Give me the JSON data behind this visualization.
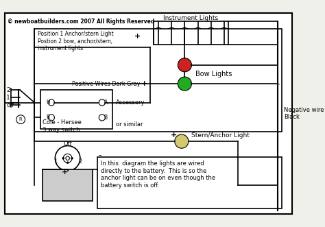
{
  "title": "© newboatbuilders.com 2007 All Rights Reserved",
  "bg_color": "#f0f0eb",
  "border_color": "#000000",
  "wire_color_dark": "#555555",
  "instrument_lights_label": "Instrument Lights",
  "bow_lights_label": "Bow Lights",
  "stern_light_label": "Stern/Anchor Light",
  "neg_wire_label": "Negative wire\nBlack",
  "pos_wire_label": "Positive Wires Dark Gray",
  "accessory_label": "Accessory",
  "switch_label": "Cole - Hersee\n3 way switch",
  "or_similar_label": "or similar",
  "pos1_label": "Position 1 Anchor/stern Light\nPostion 2 bow, anchor/stern,\ninstrument lights",
  "note_label": "In this  diagram the lights are wired\ndirectly to the battery.  This is so the\nanchor light can be on even though the\nbattery switch is off.",
  "off_label": "Off",
  "bow_light_red_color": "#cc2222",
  "bow_light_green_color": "#22aa22",
  "stern_light_color": "#d4c870",
  "figsize": [
    4.74,
    3.31
  ],
  "dpi": 100
}
